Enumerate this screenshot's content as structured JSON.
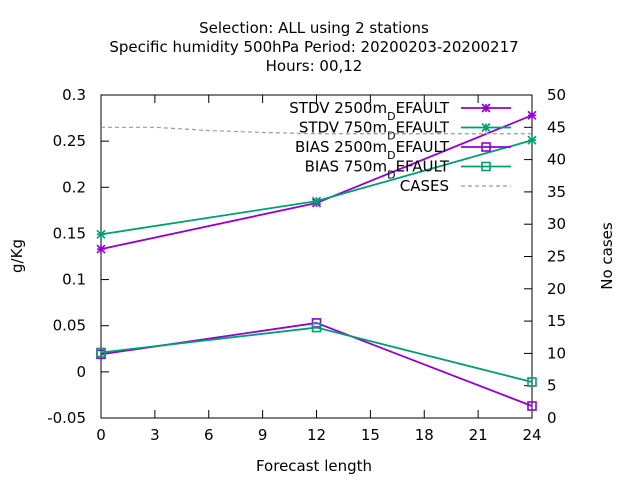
{
  "chart_data": {
    "type": "line",
    "title_lines": [
      "Selection: ALL using     2 stations",
      "Specific humidity 500hPa   Period: 20200203-20200217",
      "Hours:  00,12"
    ],
    "xlabel": "Forecast length",
    "ylabel": "g/Kg",
    "y2label": "No cases",
    "x_ticks": [
      0,
      3,
      6,
      9,
      12,
      15,
      18,
      21,
      24
    ],
    "y_ticks": [
      "-0.05",
      "0",
      "0.05",
      "0.1",
      "0.15",
      "0.2",
      "0.25",
      "0.3"
    ],
    "y2_ticks": [
      "0",
      "5",
      "10",
      "15",
      "20",
      "25",
      "30",
      "35",
      "40",
      "45",
      "50"
    ],
    "xlim": [
      0,
      24
    ],
    "ylim": [
      -0.05,
      0.3
    ],
    "y2lim": [
      0,
      50
    ],
    "legend_position": "top-right",
    "series": [
      {
        "name": "STDV 2500m_DEFAULT",
        "legend_main": "STDV 2500m",
        "legend_sub": "D",
        "legend_tail": "EFAULT",
        "axis": "y",
        "x": [
          0,
          12,
          24
        ],
        "values": [
          0.133,
          0.183,
          0.278
        ],
        "color": "#9400d3",
        "marker": "star"
      },
      {
        "name": "STDV 750m_DEFAULT",
        "legend_main": "STDV 750m",
        "legend_sub": "D",
        "legend_tail": "EFAULT",
        "axis": "y",
        "x": [
          0,
          12,
          24
        ],
        "values": [
          0.149,
          0.185,
          0.251
        ],
        "color": "#009e73",
        "marker": "star"
      },
      {
        "name": "BIAS 2500m_DEFAULT",
        "legend_main": "BIAS 2500m",
        "legend_sub": "D",
        "legend_tail": "EFAULT",
        "axis": "y",
        "x": [
          0,
          12,
          24
        ],
        "values": [
          0.019,
          0.053,
          -0.037
        ],
        "color": "#9400d3",
        "marker": "square"
      },
      {
        "name": "BIAS 750m_DEFAULT",
        "legend_main": "BIAS 750m",
        "legend_sub": "D",
        "legend_tail": "EFAULT",
        "axis": "y",
        "x": [
          0,
          12,
          24
        ],
        "values": [
          0.021,
          0.048,
          -0.011
        ],
        "color": "#009e73",
        "marker": "square"
      },
      {
        "name": "CASES",
        "legend_main": "CASES",
        "legend_sub": "",
        "legend_tail": "",
        "axis": "y2",
        "x": [
          0,
          3,
          6,
          9,
          12,
          15,
          18,
          21,
          24
        ],
        "values": [
          45,
          45,
          44.5,
          44.2,
          44,
          44,
          44,
          44,
          44
        ],
        "color": "#999999",
        "marker": "none",
        "dashed": true
      }
    ]
  }
}
